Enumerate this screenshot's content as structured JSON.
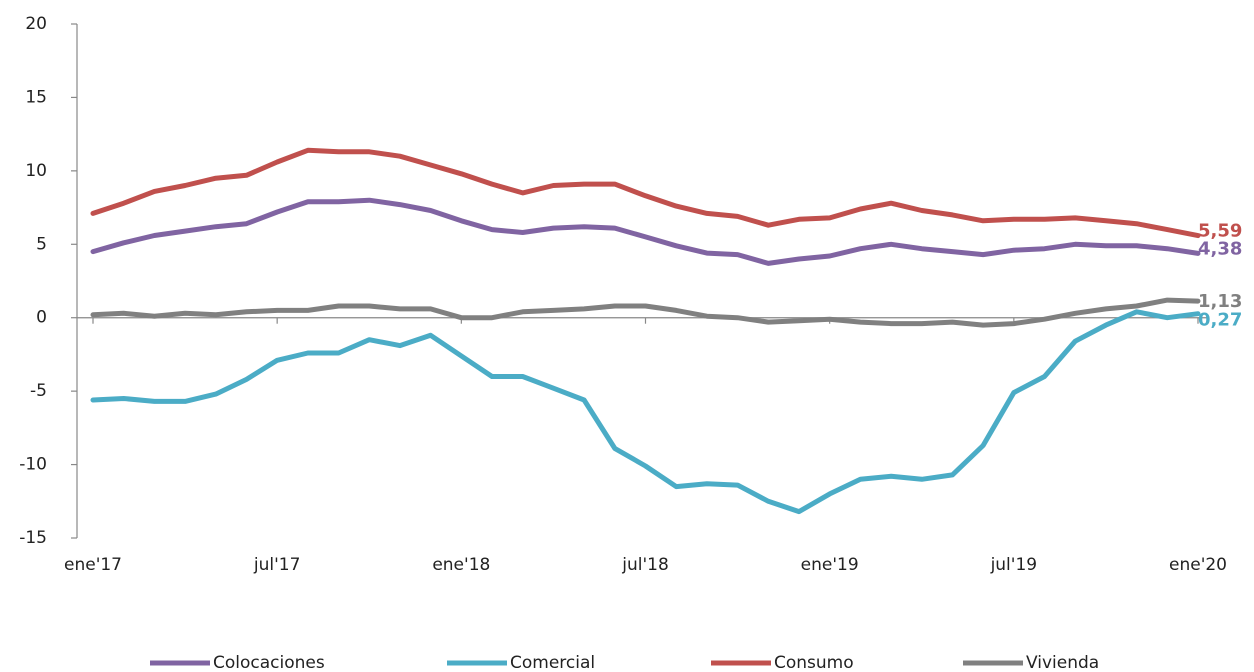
{
  "chart_data": {
    "type": "line",
    "categories": [
      "ene'17",
      null,
      null,
      null,
      null,
      null,
      "jul'17",
      null,
      null,
      null,
      null,
      null,
      "ene'18",
      null,
      null,
      null,
      null,
      null,
      "jul'18",
      null,
      null,
      null,
      null,
      null,
      "ene'19",
      null,
      null,
      null,
      null,
      null,
      "jul'19",
      null,
      null,
      null,
      null,
      null,
      "ene'20"
    ],
    "ylim": [
      -15,
      20
    ],
    "yticks": [
      -15,
      -10,
      -5,
      0,
      5,
      10,
      15,
      20
    ],
    "series": [
      {
        "name": "Colocaciones",
        "color": "#8064a2",
        "values": [
          4.5,
          5.1,
          5.6,
          5.9,
          6.2,
          6.4,
          7.2,
          7.9,
          7.9,
          8.0,
          7.7,
          7.3,
          6.6,
          6.0,
          5.8,
          6.1,
          6.2,
          6.1,
          5.5,
          4.9,
          4.4,
          4.3,
          3.7,
          4.0,
          4.2,
          4.7,
          5.0,
          4.7,
          4.5,
          4.3,
          4.6,
          4.7,
          5.0,
          4.9,
          4.9,
          4.7,
          4.38
        ],
        "value_labels": [
          null,
          null,
          null,
          null,
          null,
          null,
          null,
          null,
          null,
          null,
          null,
          null,
          null,
          null,
          null,
          null,
          null,
          null,
          null,
          null,
          null,
          null,
          null,
          null,
          null,
          null,
          null,
          null,
          null,
          null,
          null,
          null,
          null,
          null,
          null,
          null,
          "4,38"
        ]
      },
      {
        "name": "Comercial",
        "color": "#4bacc6",
        "values": [
          -5.6,
          -5.5,
          -5.7,
          -5.7,
          -5.2,
          -4.2,
          -2.9,
          -2.4,
          -2.4,
          -1.5,
          -1.9,
          -1.2,
          -2.6,
          -4.0,
          -4.0,
          -4.8,
          -5.6,
          -8.9,
          -10.1,
          -11.5,
          -11.3,
          -11.4,
          -12.5,
          -13.2,
          -12.0,
          -11.0,
          -10.8,
          -11.0,
          -10.7,
          -8.7,
          -5.1,
          -4.0,
          -1.6,
          -0.5,
          0.4,
          0.0,
          0.27
        ],
        "value_labels": [
          null,
          null,
          null,
          null,
          null,
          null,
          null,
          null,
          null,
          null,
          null,
          null,
          null,
          null,
          null,
          null,
          null,
          null,
          null,
          null,
          null,
          null,
          null,
          null,
          null,
          null,
          null,
          null,
          null,
          null,
          null,
          null,
          null,
          null,
          null,
          null,
          "0,27"
        ]
      },
      {
        "name": "Consumo",
        "color": "#c0504d",
        "values": [
          7.1,
          7.8,
          8.6,
          9.0,
          9.5,
          9.7,
          10.6,
          11.4,
          11.3,
          11.3,
          11.0,
          10.4,
          9.8,
          9.1,
          8.5,
          9.0,
          9.1,
          9.1,
          8.3,
          7.6,
          7.1,
          6.9,
          6.3,
          6.7,
          6.8,
          7.4,
          7.8,
          7.3,
          7.0,
          6.6,
          6.7,
          6.7,
          6.8,
          6.6,
          6.4,
          6.0,
          5.59
        ],
        "value_labels": [
          null,
          null,
          null,
          null,
          null,
          null,
          null,
          null,
          null,
          null,
          null,
          null,
          null,
          null,
          null,
          null,
          null,
          null,
          null,
          null,
          null,
          null,
          null,
          null,
          null,
          null,
          null,
          null,
          null,
          null,
          null,
          null,
          null,
          null,
          null,
          null,
          "5,59"
        ]
      },
      {
        "name": "Vivienda",
        "color": "#808080",
        "values": [
          0.2,
          0.3,
          0.1,
          0.3,
          0.2,
          0.4,
          0.5,
          0.5,
          0.8,
          0.8,
          0.6,
          0.6,
          0.0,
          0.0,
          0.4,
          0.5,
          0.6,
          0.8,
          0.8,
          0.5,
          0.1,
          0.0,
          -0.3,
          -0.2,
          -0.1,
          -0.3,
          -0.4,
          -0.4,
          -0.3,
          -0.5,
          -0.4,
          -0.1,
          0.3,
          0.6,
          0.8,
          1.2,
          1.13
        ],
        "value_labels": [
          null,
          null,
          null,
          null,
          null,
          null,
          null,
          null,
          null,
          null,
          null,
          null,
          null,
          null,
          null,
          null,
          null,
          null,
          null,
          null,
          null,
          null,
          null,
          null,
          null,
          null,
          null,
          null,
          null,
          null,
          null,
          null,
          null,
          null,
          null,
          null,
          "1,13"
        ]
      }
    ]
  }
}
